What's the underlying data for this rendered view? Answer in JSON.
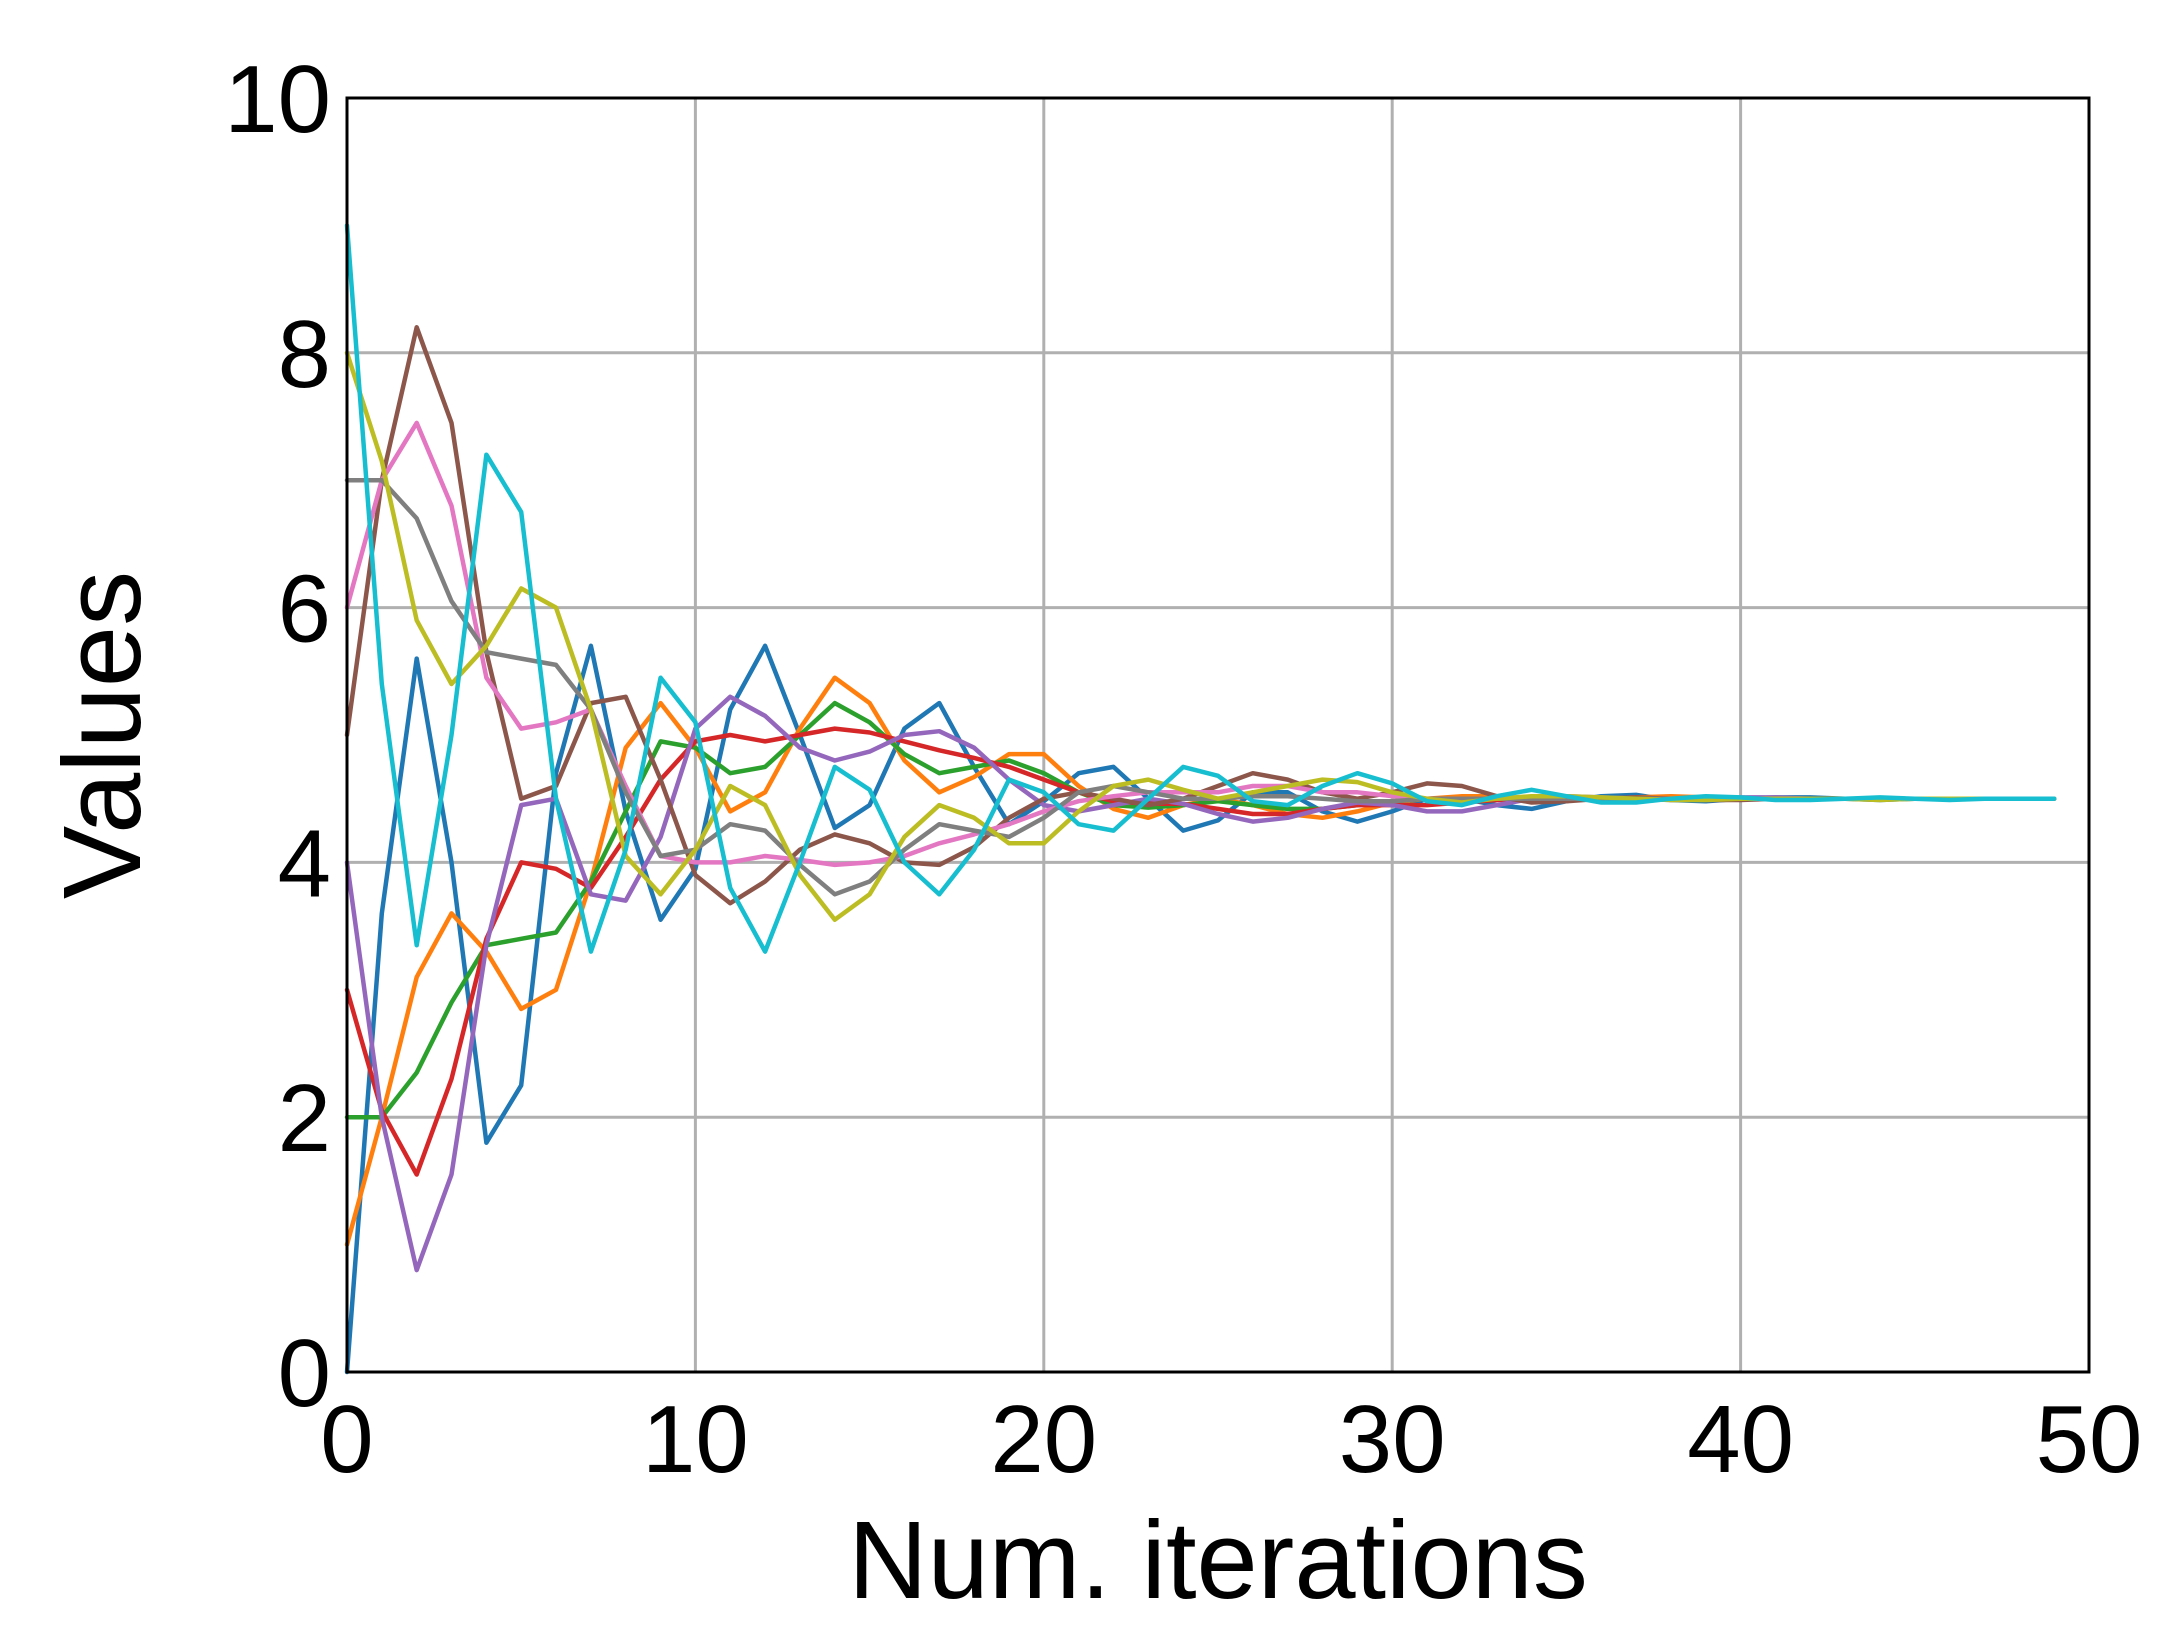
{
  "chart_data": {
    "type": "line",
    "title": "",
    "xlabel": "Num. iterations",
    "ylabel": "Values",
    "xlim": [
      0,
      50
    ],
    "ylim": [
      0,
      10
    ],
    "xticks": [
      0,
      10,
      20,
      30,
      40,
      50
    ],
    "yticks": [
      0,
      2,
      4,
      6,
      8,
      10
    ],
    "xtick_labels": [
      "0",
      "10",
      "20",
      "30",
      "40",
      "50"
    ],
    "ytick_labels": [
      "0",
      "2",
      "4",
      "6",
      "8",
      "10"
    ],
    "grid": true,
    "legend": "none",
    "series": [
      {
        "color": "#1f77b4",
        "values": [
          0.0,
          3.6,
          5.6,
          4.0,
          1.8,
          2.25,
          4.7,
          5.7,
          4.4,
          3.55,
          3.95,
          5.2,
          5.7,
          5.0,
          4.27,
          4.45,
          5.05,
          5.25,
          4.75,
          4.3,
          4.48,
          4.7,
          4.75,
          4.5,
          4.25,
          4.33,
          4.55,
          4.55,
          4.4,
          4.32,
          4.4,
          4.5,
          4.5,
          4.45,
          4.42,
          4.48,
          4.52,
          4.53,
          4.49,
          4.48,
          4.5,
          4.51,
          4.51,
          4.5,
          4.49,
          4.5,
          4.5,
          4.5,
          4.5,
          4.5
        ]
      },
      {
        "color": "#ff7f0e",
        "values": [
          1.0,
          2.0,
          3.1,
          3.6,
          3.3,
          2.85,
          3.0,
          3.85,
          4.9,
          5.25,
          4.9,
          4.4,
          4.55,
          5.05,
          5.45,
          5.25,
          4.8,
          4.55,
          4.67,
          4.85,
          4.85,
          4.6,
          4.42,
          4.35,
          4.45,
          4.5,
          4.45,
          4.38,
          4.35,
          4.4,
          4.47,
          4.5,
          4.52,
          4.52,
          4.5,
          4.49,
          4.5,
          4.51,
          4.52,
          4.51,
          4.5,
          4.5,
          4.5,
          4.5,
          4.5,
          4.5,
          4.5,
          4.5,
          4.5,
          4.5
        ]
      },
      {
        "color": "#2ca02c",
        "values": [
          2.0,
          2.0,
          2.35,
          2.9,
          3.35,
          3.4,
          3.45,
          3.85,
          4.4,
          4.95,
          4.9,
          4.7,
          4.75,
          5.0,
          5.25,
          5.1,
          4.85,
          4.7,
          4.75,
          4.8,
          4.7,
          4.55,
          4.45,
          4.43,
          4.45,
          4.48,
          4.45,
          4.42,
          4.42,
          4.45,
          4.48,
          4.5,
          4.5,
          4.5,
          4.5,
          4.5,
          4.5,
          4.5,
          4.5,
          4.5,
          4.5,
          4.5,
          4.5,
          4.5,
          4.5,
          4.5,
          4.5,
          4.5,
          4.5,
          4.5
        ]
      },
      {
        "color": "#d62728",
        "values": [
          3.0,
          2.05,
          1.55,
          2.3,
          3.4,
          4.0,
          3.95,
          3.8,
          4.2,
          4.65,
          4.95,
          5.0,
          4.95,
          5.0,
          5.05,
          5.02,
          4.95,
          4.88,
          4.82,
          4.75,
          4.65,
          4.55,
          4.48,
          4.46,
          4.46,
          4.42,
          4.38,
          4.38,
          4.42,
          4.45,
          4.45,
          4.45,
          4.47,
          4.49,
          4.5,
          4.5,
          4.5,
          4.5,
          4.5,
          4.5,
          4.5,
          4.5,
          4.5,
          4.5,
          4.5,
          4.5,
          4.5,
          4.5,
          4.5,
          4.5
        ]
      },
      {
        "color": "#9467bd",
        "values": [
          4.0,
          2.0,
          0.8,
          1.55,
          3.35,
          4.45,
          4.5,
          3.75,
          3.7,
          4.2,
          5.05,
          5.3,
          5.15,
          4.9,
          4.8,
          4.87,
          5.0,
          5.03,
          4.9,
          4.65,
          4.45,
          4.4,
          4.45,
          4.5,
          4.46,
          4.38,
          4.32,
          4.35,
          4.42,
          4.47,
          4.45,
          4.4,
          4.4,
          4.45,
          4.5,
          4.52,
          4.51,
          4.5,
          4.49,
          4.5,
          4.51,
          4.51,
          4.5,
          4.5,
          4.5,
          4.5,
          4.5,
          4.5,
          4.5,
          4.5
        ]
      },
      {
        "color": "#8c564b",
        "values": [
          5.0,
          7.0,
          8.2,
          7.45,
          5.65,
          4.5,
          4.6,
          5.25,
          5.3,
          4.65,
          3.9,
          3.68,
          3.85,
          4.1,
          4.22,
          4.15,
          4.0,
          3.98,
          4.12,
          4.35,
          4.5,
          4.55,
          4.5,
          4.45,
          4.5,
          4.6,
          4.7,
          4.65,
          4.55,
          4.5,
          4.55,
          4.62,
          4.6,
          4.52,
          4.47,
          4.48,
          4.5,
          4.51,
          4.5,
          4.49,
          4.49,
          4.5,
          4.5,
          4.5,
          4.5,
          4.5,
          4.5,
          4.5,
          4.5,
          4.5
        ]
      },
      {
        "color": "#e377c2",
        "values": [
          6.0,
          7.0,
          7.45,
          6.8,
          5.45,
          5.05,
          5.1,
          5.2,
          4.6,
          4.05,
          4.0,
          4.0,
          4.05,
          4.02,
          3.98,
          4.0,
          4.05,
          4.15,
          4.22,
          4.3,
          4.4,
          4.48,
          4.52,
          4.55,
          4.55,
          4.55,
          4.6,
          4.6,
          4.55,
          4.55,
          4.52,
          4.5,
          4.5,
          4.5,
          4.5,
          4.5,
          4.5,
          4.5,
          4.5,
          4.5,
          4.5,
          4.5,
          4.5,
          4.5,
          4.5,
          4.5,
          4.5,
          4.5,
          4.5,
          4.5
        ]
      },
      {
        "color": "#7f7f7f",
        "values": [
          7.0,
          7.0,
          6.7,
          6.05,
          5.65,
          5.6,
          5.55,
          5.2,
          4.55,
          4.05,
          4.1,
          4.3,
          4.25,
          3.98,
          3.75,
          3.85,
          4.1,
          4.3,
          4.25,
          4.2,
          4.35,
          4.55,
          4.6,
          4.55,
          4.5,
          4.5,
          4.52,
          4.52,
          4.5,
          4.48,
          4.48,
          4.5,
          4.5,
          4.5,
          4.5,
          4.5,
          4.5,
          4.5,
          4.5,
          4.5,
          4.5,
          4.5,
          4.5,
          4.5,
          4.5,
          4.5,
          4.5,
          4.5,
          4.5,
          4.5
        ]
      },
      {
        "color": "#bcbd22",
        "values": [
          8.0,
          7.15,
          5.9,
          5.4,
          5.7,
          6.15,
          6.0,
          5.2,
          4.05,
          3.75,
          4.1,
          4.6,
          4.45,
          3.9,
          3.55,
          3.75,
          4.2,
          4.45,
          4.35,
          4.15,
          4.15,
          4.4,
          4.6,
          4.65,
          4.57,
          4.5,
          4.55,
          4.6,
          4.65,
          4.63,
          4.55,
          4.5,
          4.47,
          4.5,
          4.52,
          4.52,
          4.51,
          4.5,
          4.49,
          4.49,
          4.5,
          4.5,
          4.5,
          4.5,
          4.49,
          4.5,
          4.5,
          4.5,
          4.5,
          4.5
        ]
      },
      {
        "color": "#17becf",
        "values": [
          9.0,
          5.4,
          3.35,
          5.0,
          7.2,
          6.75,
          4.5,
          3.3,
          4.1,
          5.45,
          5.1,
          3.8,
          3.3,
          4.0,
          4.75,
          4.57,
          4.0,
          3.75,
          4.1,
          4.65,
          4.55,
          4.3,
          4.25,
          4.5,
          4.75,
          4.68,
          4.48,
          4.45,
          4.6,
          4.7,
          4.62,
          4.48,
          4.45,
          4.52,
          4.57,
          4.52,
          4.47,
          4.47,
          4.5,
          4.52,
          4.51,
          4.49,
          4.49,
          4.5,
          4.51,
          4.5,
          4.49,
          4.5,
          4.5,
          4.5
        ]
      }
    ]
  }
}
